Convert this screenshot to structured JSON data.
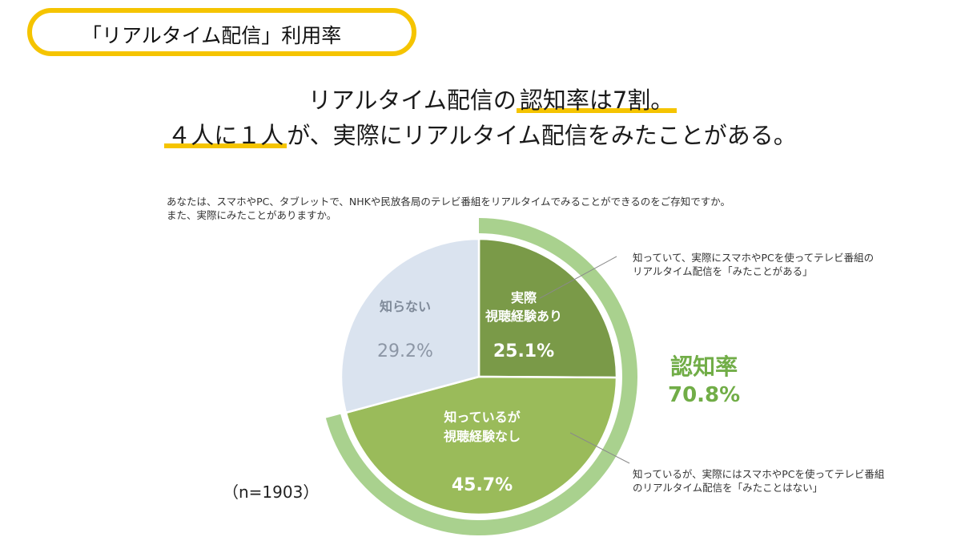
{
  "header": {
    "title": "「リアルタイム配信」利用率"
  },
  "headline": {
    "line1_prefix": "リアルタイム配信の",
    "line1_highlight": "認知率は7割。",
    "line2_highlight": "４人に１人",
    "line2_suffix": "が、実際にリアルタイム配信をみたことがある。"
  },
  "question": {
    "line1": "あなたは、スマホやPC、タブレットで、NHKや民放各局のテレビ番組をリアルタイムでみることができるのをご存知ですか。",
    "line2": "また、実際にみたことがありますか。"
  },
  "sample_size": "（n=1903）",
  "callouts": {
    "watched_line1": "知っていて、実際にスマホやPCを使ってテレビ番組の",
    "watched_line2": "リアルタイム配信を「みたことがある」",
    "not_watched_line1": "知っているが、実際にはスマホやPCを使ってテレビ番組",
    "not_watched_line2": "のリアルタイム配信を「みたことはない」"
  },
  "awareness": {
    "label": "認知率",
    "value": "70.8%"
  },
  "colors": {
    "watched": "#7a9a48",
    "aware_not_watched": "#9abb5a",
    "unaware": "#dae3ef",
    "awareness_ring": "#a9d18e",
    "accent_yellow": "#f5c400",
    "awareness_text": "#71ad47"
  },
  "chart_data": {
    "type": "pie",
    "title": "",
    "slices": [
      {
        "label_line1": "実際",
        "label_line2": "視聴経験あり",
        "value": 25.1,
        "value_label": "25.1%"
      },
      {
        "label_line1": "知っているが",
        "label_line2": "視聴経験なし",
        "value": 45.7,
        "value_label": "45.7%"
      },
      {
        "label_line1": "知らない",
        "label_line2": "",
        "value": 29.2,
        "value_label": "29.2%"
      }
    ]
  }
}
